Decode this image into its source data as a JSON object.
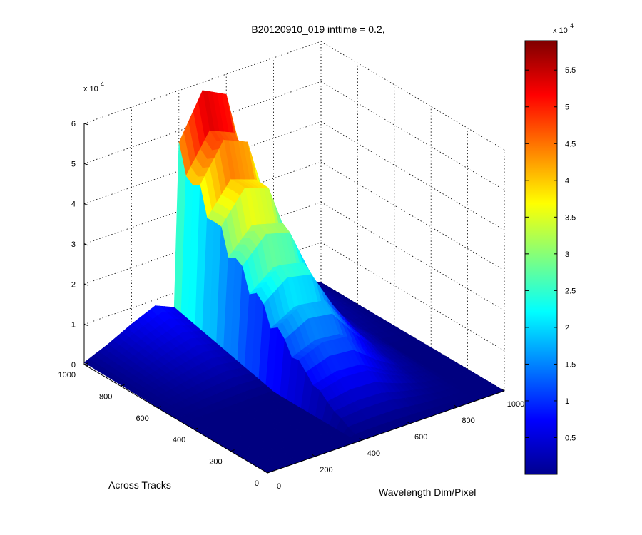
{
  "chart_data": {
    "type": "surface",
    "title": "B20120910_019 inttime = 0.2,",
    "xlabel": "Wavelength Dim/Pixel",
    "ylabel": "Across Tracks",
    "zlabel": "",
    "xlim": [
      0,
      1000
    ],
    "ylim": [
      0,
      1000
    ],
    "zlim": [
      0,
      60000
    ],
    "x_ticks": [
      "0",
      "200",
      "400",
      "600",
      "800",
      "1000"
    ],
    "y_ticks": [
      "0",
      "200",
      "400",
      "600",
      "800",
      "1000"
    ],
    "z_ticks": [
      "0",
      "1",
      "2",
      "3",
      "4",
      "5",
      "6"
    ],
    "z_exponent_label": "x 10",
    "z_exponent": "4",
    "colorbar": {
      "ticks": [
        "0.5",
        "1",
        "1.5",
        "2",
        "2.5",
        "3",
        "3.5",
        "4",
        "4.5",
        "5",
        "5.5"
      ],
      "exponent_label": "x 10",
      "exponent": "4",
      "colormap": "jet",
      "range": [
        0,
        59000
      ]
    },
    "grid": true,
    "surface": {
      "wavelength_pixels": [
        0,
        100,
        200,
        300,
        400,
        500,
        600,
        700,
        800,
        900,
        1000
      ],
      "across_track_rows": [
        0,
        200,
        400,
        600,
        800,
        1000
      ],
      "peak_value_at_row_1000": [
        0,
        150,
        200,
        1200,
        47000,
        58000,
        55000,
        30000,
        10000,
        1000,
        0
      ],
      "low_band_values_far_rows": [
        500,
        3000,
        6000,
        8500,
        6000,
        5000,
        3000,
        2000,
        2000,
        3000,
        0
      ]
    }
  }
}
